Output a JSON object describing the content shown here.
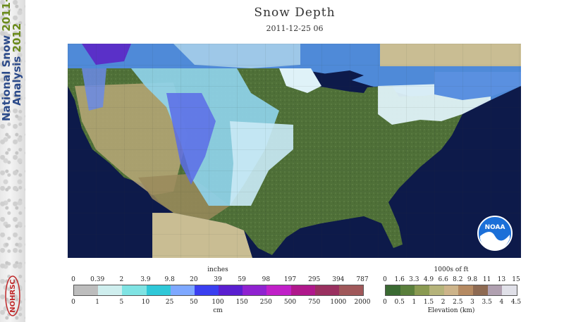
{
  "sidebar": {
    "brand_line1": "National Snow ",
    "brand_year1": "2011-",
    "brand_line2": "Analysis ",
    "brand_year2": "2012",
    "logo_text": "NOHRSC"
  },
  "header": {
    "title": "Snow Depth",
    "date": "2011-12-25 06"
  },
  "map": {
    "region": "Contiguous United States",
    "logo_text": "NOAA"
  },
  "snow_legend": {
    "top_unit": "inches",
    "bottom_unit": "cm",
    "top_labels": [
      "0",
      "0.39",
      "2",
      "3.9",
      "9.8",
      "20",
      "39",
      "59",
      "98",
      "197",
      "295",
      "394",
      "787"
    ],
    "bottom_labels": [
      "0",
      "1",
      "5",
      "10",
      "25",
      "50",
      "100",
      "150",
      "250",
      "500",
      "750",
      "1000",
      "2000"
    ],
    "colors": [
      "#bdbdbd",
      "#cfeeee",
      "#7fe3e3",
      "#2fc8d8",
      "#7ea8ff",
      "#3a3ff0",
      "#5a1fd0",
      "#8f22d0",
      "#c020c8",
      "#b0188c",
      "#9a3060",
      "#a0585a"
    ]
  },
  "elevation_legend": {
    "top_unit": "1000s of ft",
    "bottom_unit": "Elevation (km)",
    "top_labels": [
      "0",
      "1.6",
      "3.3",
      "4.9",
      "6.6",
      "8.2",
      "9.8",
      "11",
      "13",
      "15"
    ],
    "bottom_labels": [
      "0",
      "0.5",
      "1",
      "1.5",
      "2",
      "2.5",
      "3",
      "3.5",
      "4",
      "4.5"
    ],
    "colors": [
      "#3a6a32",
      "#5a7f3c",
      "#8a9a52",
      "#b5b37a",
      "#cdb48a",
      "#b58a62",
      "#8e6a52",
      "#b0a0b0",
      "#e0e0e8"
    ]
  }
}
